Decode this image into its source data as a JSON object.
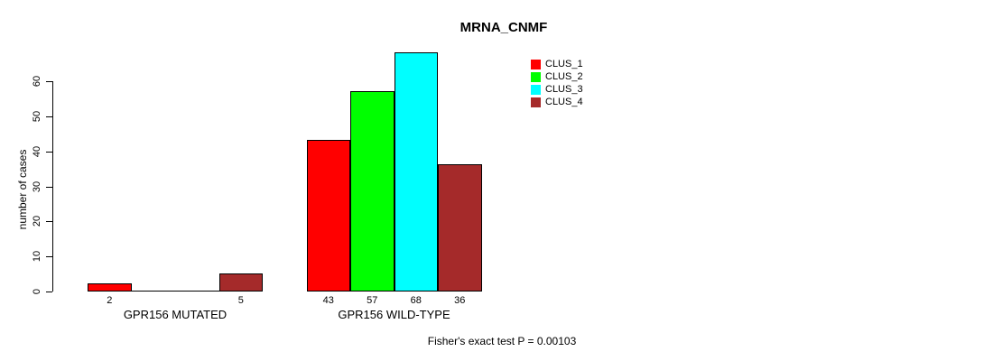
{
  "title": "MRNA_CNMF",
  "footer": "Fisher's exact test P = 0.00103",
  "y_axis": {
    "label": "number of cases",
    "ticks": [
      0,
      10,
      20,
      30,
      40,
      50,
      60
    ]
  },
  "colors": {
    "bar_border": "#000000",
    "axis": "#000000",
    "background": "#FFFFFF",
    "clus_1": "#FF0000",
    "clus_2": "#00FF00",
    "clus_3": "#00FFFF",
    "clus_4": "#A52A2A"
  },
  "chart_data": {
    "type": "bar",
    "title": "MRNA_CNMF",
    "xlabel": "",
    "ylabel": "number of cases",
    "ylim": [
      0,
      68
    ],
    "yticks": [
      0,
      10,
      20,
      30,
      40,
      50,
      60
    ],
    "grid": false,
    "legend_position": "top-right",
    "categories": [
      "GPR156 MUTATED",
      "GPR156 WILD-TYPE"
    ],
    "series": [
      {
        "name": "CLUS_1",
        "color": "#FF0000",
        "values": [
          2,
          43
        ]
      },
      {
        "name": "CLUS_2",
        "color": "#00FF00",
        "values": [
          0,
          57
        ]
      },
      {
        "name": "CLUS_3",
        "color": "#00FFFF",
        "values": [
          0,
          68
        ]
      },
      {
        "name": "CLUS_4",
        "color": "#A52A2A",
        "values": [
          5,
          36
        ]
      }
    ],
    "bar_value_labels": [
      [
        "2",
        null,
        null,
        "5"
      ],
      [
        "43",
        "57",
        "68",
        "36"
      ]
    ],
    "annotation": "Fisher's exact test P = 0.00103"
  }
}
